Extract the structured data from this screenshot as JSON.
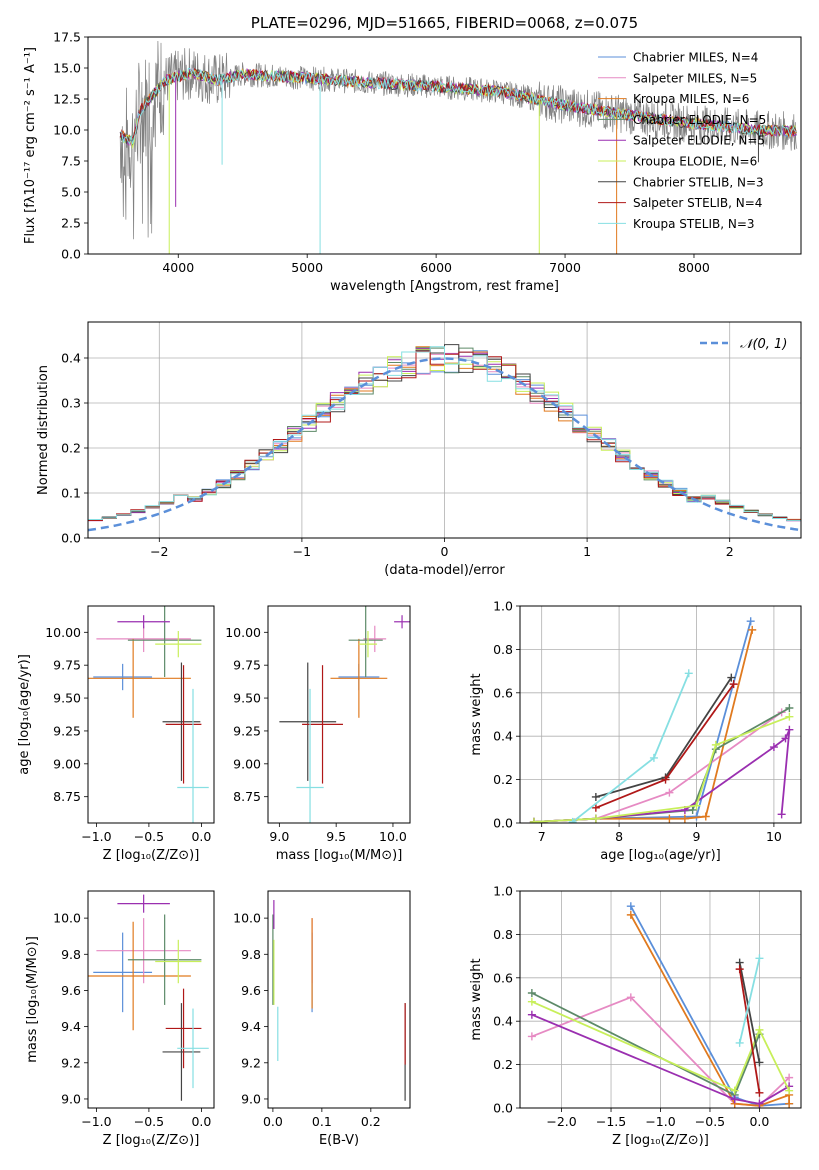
{
  "colors": {
    "blue": "#5b8fd9",
    "pink": "#e68ac3",
    "orange": "#e07a1f",
    "green": "#5d8a68",
    "purple": "#9a2fb0",
    "lime": "#c8ef5a",
    "gray": "#444444",
    "red": "#b01818",
    "cyan": "#86dfe2"
  },
  "chart_data": [
    {
      "id": "spectrum",
      "type": "line",
      "title": "PLATE=0296, MJD=51665, FIBERID=0068, z=0.075",
      "xlabel": "wavelength [Angstrom, rest frame]",
      "ylabel": "Flux [fλ10⁻¹⁷ erg cm⁻² s⁻¹ A⁻¹]",
      "xlim": [
        3300,
        8830
      ],
      "ylim": [
        0,
        17.5
      ],
      "xticks": [
        4000,
        5000,
        6000,
        7000,
        8000
      ],
      "yticks": [
        0.0,
        2.5,
        5.0,
        7.5,
        10.0,
        12.5,
        15.0,
        17.5
      ],
      "ytick_labels": [
        "0.0",
        "2.5",
        "5.0",
        "7.5",
        "10.0",
        "12.5",
        "15.0",
        "17.5"
      ],
      "legend": "top-right",
      "series": [
        {
          "name": "Chabrier MILES, N_SSP=4",
          "color_key": "blue"
        },
        {
          "name": "Salpeter MILES, N_SSP=5",
          "color_key": "pink"
        },
        {
          "name": "Kroupa MILES, N_SSP=6",
          "color_key": "orange"
        },
        {
          "name": "Chabrier ELODIE, N_SSP=5",
          "color_key": "green"
        },
        {
          "name": "Salpeter ELODIE, N_SSP=5",
          "color_key": "purple"
        },
        {
          "name": "Kroupa ELODIE, N_SSP=6",
          "color_key": "lime"
        },
        {
          "name": "Chabrier STELIB, N_SSP=3",
          "color_key": "gray"
        },
        {
          "name": "Salpeter STELIB, N_SSP=4",
          "color_key": "red"
        },
        {
          "name": "Kroupa STELIB, N_SSP=3",
          "color_key": "cyan"
        }
      ],
      "model_continuum": {
        "x": [
          3550,
          3650,
          3700,
          3800,
          3900,
          4000,
          4100,
          4300,
          4500,
          5000,
          5500,
          6000,
          6500,
          7000,
          7500,
          8000,
          8500,
          8800
        ],
        "y": [
          9.6,
          9.0,
          11.5,
          12.8,
          14.0,
          14.3,
          14.6,
          14.0,
          14.5,
          14.2,
          13.8,
          13.5,
          13.1,
          12.0,
          11.2,
          10.5,
          10.0,
          9.9
        ]
      }
    },
    {
      "id": "residuals",
      "type": "line",
      "xlabel": "(data-model)/error",
      "ylabel": "Normed distribution",
      "xlim": [
        -2.5,
        2.5
      ],
      "ylim": [
        0,
        0.48
      ],
      "xticks": [
        -2,
        -1,
        0,
        1,
        2
      ],
      "xtick_labels": [
        "−2",
        "−1",
        "0",
        "1",
        "2"
      ],
      "yticks": [
        0.0,
        0.1,
        0.2,
        0.3,
        0.4
      ],
      "ytick_labels": [
        "0.0",
        "0.1",
        "0.2",
        "0.3",
        "0.4"
      ],
      "grid": true,
      "legend": "top-right",
      "reference_label": "𝒩(0, 1)",
      "reference_color": "#5b8fd9"
    },
    {
      "id": "age_vs_Z",
      "type": "scatter",
      "xlabel": "Z [log₁₀(Z/Z⊙)]",
      "ylabel": "age  [log₁₀(age/yr)]",
      "xlim": [
        -1.08,
        0.12
      ],
      "ylim": [
        8.55,
        10.2
      ],
      "xticks": [
        -1.0,
        -0.5,
        0.0
      ],
      "xtick_labels": [
        "−1.0",
        "−0.5",
        "0.0"
      ],
      "yticks": [
        8.75,
        9.0,
        9.25,
        9.5,
        9.75,
        10.0
      ],
      "ytick_labels": [
        "8.75",
        "9.00",
        "9.25",
        "9.50",
        "9.75",
        "10.00"
      ],
      "points": [
        {
          "c": "blue",
          "x": -0.75,
          "xe": 0.28,
          "y": 9.66,
          "ye": 0.1
        },
        {
          "c": "pink",
          "x": -0.55,
          "xe": 0.45,
          "y": 9.95,
          "ye": 0.1
        },
        {
          "c": "orange",
          "x": -0.65,
          "xe": 0.55,
          "y": 9.65,
          "ye": 0.3
        },
        {
          "c": "green",
          "x": -0.35,
          "xe": 0.35,
          "y": 9.94,
          "ye": 0.28
        },
        {
          "c": "purple",
          "x": -0.55,
          "xe": 0.25,
          "y": 10.08,
          "ye": 0.05
        },
        {
          "c": "lime",
          "x": -0.22,
          "xe": 0.22,
          "y": 9.91,
          "ye": 0.1
        },
        {
          "c": "gray",
          "x": -0.19,
          "xe": 0.18,
          "y": 9.32,
          "ye": 0.45
        },
        {
          "c": "red",
          "x": -0.17,
          "xe": 0.17,
          "y": 9.3,
          "ye": 0.45
        },
        {
          "c": "cyan",
          "x": -0.08,
          "xe": 0.15,
          "y": 8.82,
          "ye": 0.75
        }
      ]
    },
    {
      "id": "age_vs_mass",
      "type": "scatter",
      "xlabel": "mass [log₁₀(M/M⊙)]",
      "ylabel": "",
      "xlim": [
        8.9,
        10.15
      ],
      "ylim": [
        8.55,
        10.2
      ],
      "xticks": [
        9.0,
        9.5,
        10.0
      ],
      "xtick_labels": [
        "9.0",
        "9.5",
        "10.0"
      ],
      "yticks": [
        8.75,
        9.0,
        9.25,
        9.5,
        9.75,
        10.0
      ],
      "ytick_labels": [
        "8.75",
        "9.00",
        "9.25",
        "9.50",
        "9.75",
        "10.00"
      ],
      "points": [
        {
          "c": "blue",
          "x": 9.7,
          "xe": 0.18,
          "y": 9.66,
          "ye": 0.1
        },
        {
          "c": "pink",
          "x": 9.84,
          "xe": 0.1,
          "y": 9.95,
          "ye": 0.1
        },
        {
          "c": "orange",
          "x": 9.7,
          "xe": 0.25,
          "y": 9.65,
          "ye": 0.3
        },
        {
          "c": "green",
          "x": 9.76,
          "xe": 0.15,
          "y": 9.94,
          "ye": 0.28
        },
        {
          "c": "purple",
          "x": 10.08,
          "xe": 0.07,
          "y": 10.08,
          "ye": 0.05
        },
        {
          "c": "lime",
          "x": 9.78,
          "xe": 0.08,
          "y": 9.91,
          "ye": 0.1
        },
        {
          "c": "gray",
          "x": 9.25,
          "xe": 0.25,
          "y": 9.32,
          "ye": 0.45
        },
        {
          "c": "red",
          "x": 9.38,
          "xe": 0.18,
          "y": 9.3,
          "ye": 0.45
        },
        {
          "c": "cyan",
          "x": 9.27,
          "xe": 0.12,
          "y": 8.82,
          "ye": 0.75
        }
      ]
    },
    {
      "id": "mass_vs_Z",
      "type": "scatter",
      "xlabel": "Z [log₁₀(Z/Z⊙)]",
      "ylabel": "mass [log₁₀(M/M⊙)]",
      "xlim": [
        -1.08,
        0.12
      ],
      "ylim": [
        8.95,
        10.15
      ],
      "xticks": [
        -1.0,
        -0.5,
        0.0
      ],
      "xtick_labels": [
        "−1.0",
        "−0.5",
        "0.0"
      ],
      "yticks": [
        9.0,
        9.2,
        9.4,
        9.6,
        9.8,
        10.0
      ],
      "ytick_labels": [
        "9.0",
        "9.2",
        "9.4",
        "9.6",
        "9.8",
        "10.0"
      ],
      "points": [
        {
          "c": "blue",
          "x": -0.75,
          "xe": 0.28,
          "y": 9.7,
          "ye": 0.22
        },
        {
          "c": "pink",
          "x": -0.55,
          "xe": 0.45,
          "y": 9.82,
          "ye": 0.18
        },
        {
          "c": "orange",
          "x": -0.65,
          "xe": 0.55,
          "y": 9.68,
          "ye": 0.3
        },
        {
          "c": "green",
          "x": -0.35,
          "xe": 0.35,
          "y": 9.77,
          "ye": 0.25
        },
        {
          "c": "purple",
          "x": -0.55,
          "xe": 0.25,
          "y": 10.08,
          "ye": 0.05
        },
        {
          "c": "lime",
          "x": -0.22,
          "xe": 0.22,
          "y": 9.76,
          "ye": 0.12
        },
        {
          "c": "gray",
          "x": -0.19,
          "xe": 0.18,
          "y": 9.26,
          "ye": 0.27
        },
        {
          "c": "red",
          "x": -0.17,
          "xe": 0.17,
          "y": 9.39,
          "ye": 0.22
        },
        {
          "c": "cyan",
          "x": -0.08,
          "xe": 0.15,
          "y": 9.28,
          "ye": 0.22
        }
      ]
    },
    {
      "id": "mass_vs_ebv",
      "type": "scatter",
      "xlabel": "E(B-V)",
      "ylabel": "",
      "xlim": [
        -0.01,
        0.28
      ],
      "ylim": [
        8.95,
        10.15
      ],
      "xticks": [
        0.0,
        0.1,
        0.2
      ],
      "xtick_labels": [
        "0.0",
        "0.1",
        "0.2"
      ],
      "yticks": [
        9.0,
        9.2,
        9.4,
        9.6,
        9.8,
        10.0
      ],
      "ytick_labels": [
        "9.0",
        "9.2",
        "9.4",
        "9.6",
        "9.8",
        "10.0"
      ],
      "points": [
        {
          "c": "blue",
          "x": 0.08,
          "xe": 0,
          "y": 9.7,
          "ye": 0.22
        },
        {
          "c": "pink",
          "x": 0.08,
          "xe": 0,
          "y": 9.82,
          "ye": 0.18
        },
        {
          "c": "orange",
          "x": 0.08,
          "xe": 0,
          "y": 9.75,
          "ye": 0.25
        },
        {
          "c": "green",
          "x": 0.0,
          "xe": 0,
          "y": 9.77,
          "ye": 0.25
        },
        {
          "c": "purple",
          "x": 0.002,
          "xe": 0,
          "y": 10.02,
          "ye": 0.08
        },
        {
          "c": "lime",
          "x": 0.002,
          "xe": 0,
          "y": 9.7,
          "ye": 0.18
        },
        {
          "c": "gray",
          "x": 0.27,
          "xe": 0,
          "y": 9.26,
          "ye": 0.27
        },
        {
          "c": "red",
          "x": 0.27,
          "xe": 0,
          "y": 9.36,
          "ye": 0.17
        },
        {
          "c": "cyan",
          "x": 0.01,
          "xe": 0,
          "y": 9.36,
          "ye": 0.15
        }
      ]
    },
    {
      "id": "weight_vs_age",
      "type": "line",
      "xlabel": "age  [log₁₀(age/yr)]",
      "ylabel": "mass weight",
      "xlim": [
        6.72,
        10.35
      ],
      "ylim": [
        0,
        1.0
      ],
      "xticks": [
        7,
        8,
        9,
        10
      ],
      "xtick_labels": [
        "7",
        "8",
        "9",
        "10"
      ],
      "yticks": [
        0.0,
        0.2,
        0.4,
        0.6,
        0.8,
        1.0
      ],
      "ytick_labels": [
        "0.0",
        "0.2",
        "0.4",
        "0.6",
        "0.8",
        "1.0"
      ],
      "grid": true,
      "series": [
        {
          "c": "blue",
          "x": [
            6.9,
            7.7,
            9.0,
            9.7
          ],
          "y": [
            0.005,
            0.02,
            0.03,
            0.93
          ]
        },
        {
          "c": "pink",
          "x": [
            6.9,
            7.7,
            8.65,
            10.1
          ],
          "y": [
            0.005,
            0.02,
            0.14,
            0.51
          ]
        },
        {
          "c": "orange",
          "x": [
            6.9,
            7.7,
            8.65,
            8.85,
            9.12,
            9.72
          ],
          "y": [
            0.005,
            0.02,
            0.02,
            0.02,
            0.03,
            0.89
          ]
        },
        {
          "c": "green",
          "x": [
            6.9,
            7.7,
            8.95,
            9.25,
            10.2
          ],
          "y": [
            0.005,
            0.02,
            0.06,
            0.34,
            0.53
          ]
        },
        {
          "c": "purple",
          "x": [
            6.9,
            7.7,
            8.85,
            10.0,
            10.15,
            10.2,
            10.1
          ],
          "y": [
            0.005,
            0.02,
            0.06,
            0.35,
            0.39,
            0.43,
            0.04
          ]
        },
        {
          "c": "lime",
          "x": [
            6.9,
            7.7,
            9.0,
            9.25,
            10.2
          ],
          "y": [
            0.005,
            0.02,
            0.08,
            0.36,
            0.49
          ]
        },
        {
          "c": "gray",
          "x": [
            7.7,
            8.6,
            9.45
          ],
          "y": [
            0.12,
            0.21,
            0.67
          ]
        },
        {
          "c": "red",
          "x": [
            7.7,
            8.6,
            9.48
          ],
          "y": [
            0.07,
            0.2,
            0.64
          ]
        },
        {
          "c": "cyan",
          "x": [
            7.4,
            8.45,
            8.9
          ],
          "y": [
            0.005,
            0.3,
            0.69
          ]
        }
      ]
    },
    {
      "id": "weight_vs_Z",
      "type": "line",
      "xlabel": "Z [log₁₀(Z/Z⊙)]",
      "ylabel": "mass weight",
      "xlim": [
        -2.42,
        0.42
      ],
      "ylim": [
        0,
        1.0
      ],
      "xticks": [
        -2.0,
        -1.5,
        -1.0,
        -0.5,
        0.0
      ],
      "xtick_labels": [
        "−2.0",
        "−1.5",
        "−1.0",
        "−0.5",
        "0.0"
      ],
      "yticks": [
        0.0,
        0.2,
        0.4,
        0.6,
        0.8,
        1.0
      ],
      "ytick_labels": [
        "0.0",
        "0.2",
        "0.4",
        "0.6",
        "0.8",
        "1.0"
      ],
      "grid": true,
      "series": [
        {
          "c": "blue",
          "x": [
            -1.3,
            -0.25,
            0.0,
            0.3
          ],
          "y": [
            0.93,
            0.05,
            0.01,
            0.02
          ]
        },
        {
          "c": "pink",
          "x": [
            -2.3,
            -1.3,
            -0.25,
            0.0,
            0.3
          ],
          "y": [
            0.33,
            0.51,
            0.02,
            0.01,
            0.14
          ]
        },
        {
          "c": "orange",
          "x": [
            -1.3,
            -0.25,
            0.0,
            0.3,
            0.3
          ],
          "y": [
            0.89,
            0.02,
            0.01,
            0.06,
            0.02
          ]
        },
        {
          "c": "green",
          "x": [
            -2.3,
            -0.25,
            0.0
          ],
          "y": [
            0.53,
            0.06,
            0.34
          ]
        },
        {
          "c": "purple",
          "x": [
            -2.3,
            -0.25,
            0.0,
            0.3
          ],
          "y": [
            0.43,
            0.04,
            0.02,
            0.1
          ]
        },
        {
          "c": "lime",
          "x": [
            -2.3,
            -0.25,
            0.0,
            0.3
          ],
          "y": [
            0.49,
            0.08,
            0.36,
            0.08
          ]
        },
        {
          "c": "gray",
          "x": [
            -0.2,
            0.0
          ],
          "y": [
            0.67,
            0.21
          ]
        },
        {
          "c": "red",
          "x": [
            -0.2,
            0.0
          ],
          "y": [
            0.64,
            0.07
          ]
        },
        {
          "c": "cyan",
          "x": [
            -0.2,
            0.0
          ],
          "y": [
            0.3,
            0.69
          ]
        }
      ]
    }
  ]
}
